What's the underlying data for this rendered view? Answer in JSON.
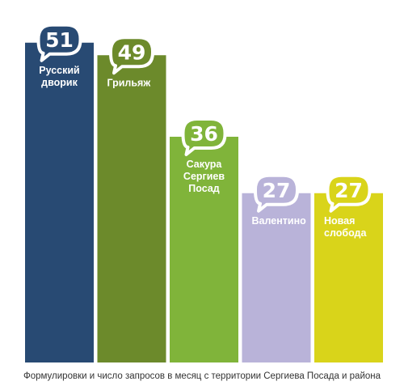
{
  "chart_data": {
    "type": "bar",
    "categories": [
      "Русский дворик",
      "Грильяж",
      "Сакура Сергиев Посад",
      "Валентино",
      "Новая слобода"
    ],
    "category_lines": [
      [
        "Русский",
        "дворик"
      ],
      [
        "Грильяж"
      ],
      [
        "Сакура",
        "Сергиев",
        "Посад"
      ],
      [
        "Валентино"
      ],
      [
        "Новая",
        "слобода"
      ]
    ],
    "values": [
      51,
      49,
      36,
      27,
      27
    ],
    "value_labels": [
      "51",
      "49",
      "36",
      "27",
      "27"
    ],
    "colors": [
      "#284a73",
      "#6c8a2b",
      "#80b43a",
      "#b9b3d9",
      "#d9d41a"
    ],
    "caption": "Формулировки и число запросов в месяц с территории Сергиева Посада и района",
    "grid": false,
    "legend": "none"
  }
}
